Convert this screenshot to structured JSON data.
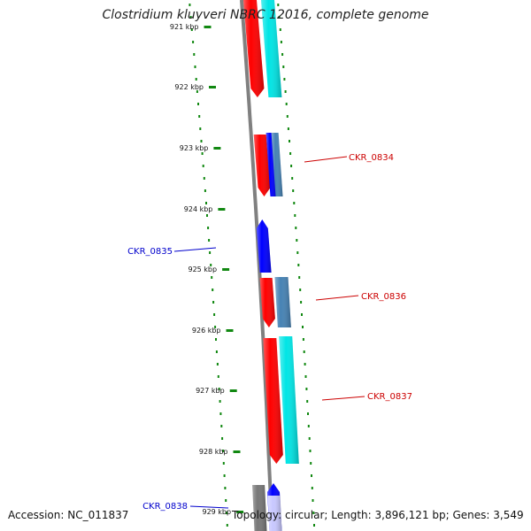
{
  "title": "Clostridium kluyveri NBRC 12016, complete genome",
  "footer": {
    "accession": "Accession: NC_011837",
    "stats": "Topology: circular; Length: 3,896,121 bp; Genes: 3,549"
  },
  "scale": {
    "ticks": [
      {
        "label": "921 kbp"
      },
      {
        "label": "922 kbp"
      },
      {
        "label": "923 kbp"
      },
      {
        "label": "924 kbp"
      },
      {
        "label": "925 kbp"
      },
      {
        "label": "926 kbp"
      },
      {
        "label": "927 kbp"
      },
      {
        "label": "928 kbp"
      },
      {
        "label": "929 kbp"
      }
    ]
  },
  "colors": {
    "forward_cds": "#ff0000",
    "reverse_cds": "#0000ff",
    "other_feature": "#777777",
    "forward_annotation": "#00e5e5",
    "forward_annotation_alt": "#4682b4",
    "reverse_annotation": "#c8c8ff",
    "backbone": "#808080",
    "tick": "#118811",
    "forward_label": "#cc0000",
    "reverse_label": "#0000cc"
  },
  "gene_labels": [
    {
      "text": "CKR_0834",
      "strand": "forward"
    },
    {
      "text": "CKR_0835",
      "strand": "reverse"
    },
    {
      "text": "CKR_0836",
      "strand": "forward"
    },
    {
      "text": "CKR_0837",
      "strand": "forward"
    },
    {
      "text": "CKR_0838",
      "strand": "reverse"
    }
  ]
}
